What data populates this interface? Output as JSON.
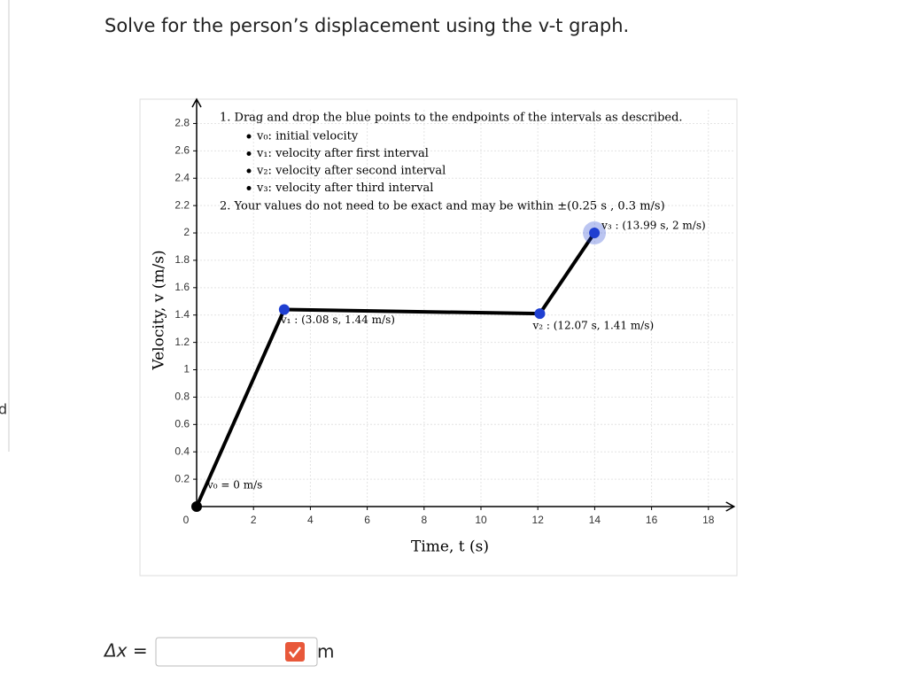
{
  "sidebar_fragment": "d",
  "prompt": "Solve for the person’s displacement using the v-t graph.",
  "chart_data": {
    "type": "line",
    "instructions": {
      "step1": "1. Drag and drop the blue points to the endpoints of the intervals as described.",
      "bullets": [
        "v₀: initial velocity",
        "v₁: velocity after first interval",
        "v₂: velocity after second interval",
        "v₃: velocity after third interval"
      ],
      "step2": "2. Your values do not need to be exact and may be within ±(0.25 s , 0.3 m/s)"
    },
    "x_label": "Time, t (s)",
    "y_label": "Velocity, v (m/s)",
    "xlim": [
      0,
      18.9
    ],
    "ylim": [
      0,
      2.9
    ],
    "xticks": [
      0,
      2,
      4,
      6,
      8,
      10,
      12,
      14,
      16,
      18
    ],
    "yticks": [
      0.2,
      0.4,
      0.6,
      0.8,
      1,
      1.2,
      1.4,
      1.6,
      1.8,
      2,
      2.2,
      2.4,
      2.6,
      2.8
    ],
    "grid": true,
    "series": [
      {
        "color": "#000000",
        "point_color": "#1f3fd1",
        "x": [
          0,
          3.08,
          12.07,
          13.99
        ],
        "values": [
          0,
          1.44,
          1.41,
          2
        ],
        "point_labels": [
          "v₀ = 0 m/s",
          "v₁ : (3.08 s, 1.44 m/s)",
          "v₂ : (12.07 s, 1.41 m/s)",
          "v₃ : (13.99 s, 2 m/s)"
        ]
      }
    ]
  },
  "answer": {
    "label": "Δx =",
    "unit": "m"
  }
}
